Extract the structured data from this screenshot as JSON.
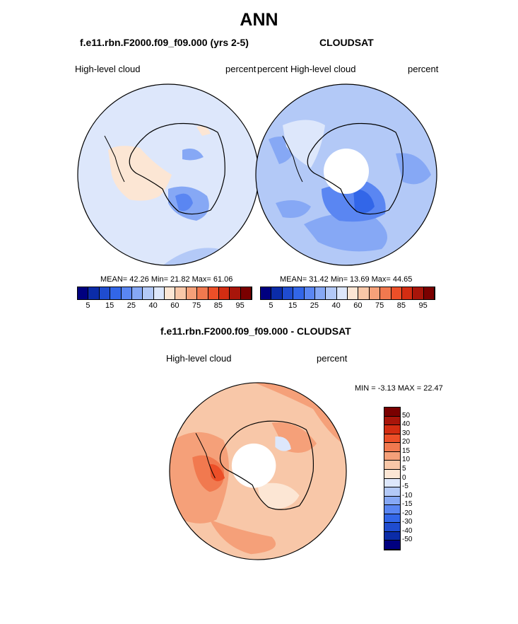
{
  "page": {
    "title": "ANN",
    "panel_left_title": "f.e11.rbn.F2000.f09_f09.000 (yrs 2-5)",
    "panel_right_title": "CLOUDSAT",
    "diff_title": "f.e11.rbn.F2000.f09_f09.000 - CLOUDSAT"
  },
  "colors": {
    "seq": [
      "#00007f",
      "#0b2ca8",
      "#1f4ccf",
      "#3266e8",
      "#5a86f2",
      "#86a8f5",
      "#b3c9f7",
      "#dde7fb",
      "#fce6d4",
      "#f8c7a8",
      "#f5a079",
      "#f1794f",
      "#ec4f28",
      "#d32d12",
      "#a8150a",
      "#7a0000"
    ],
    "div": [
      "#7a0000",
      "#a8150a",
      "#d32d12",
      "#ec4f28",
      "#f1794f",
      "#f5a079",
      "#f8c7a8",
      "#fce6d4",
      "#dde7fb",
      "#b3c9f7",
      "#86a8f5",
      "#5a86f2",
      "#3266e8",
      "#1f4ccf",
      "#0b2ca8",
      "#00007f"
    ]
  },
  "chart_data": [
    {
      "type": "heatmap",
      "projection": "south polar stereographic",
      "title": "f.e11.rbn.F2000.f09_f09.000 (yrs 2-5)",
      "left_label": "High-level cloud",
      "right_label": "percent",
      "stats": {
        "mean": "42.26",
        "min": "21.82",
        "max": "61.06"
      },
      "stats_text": "MEAN=  42.26  Min=  21.82  Max=  61.06",
      "colorbar_ticks": [
        "5",
        "15",
        "25",
        "40",
        "60",
        "75",
        "85",
        "95"
      ]
    },
    {
      "type": "heatmap",
      "projection": "south polar stereographic",
      "title": "CLOUDSAT",
      "left_label": "percent High-level cloud",
      "right_label": "percent",
      "stats": {
        "mean": "31.42",
        "min": "13.69",
        "max": "44.65"
      },
      "stats_text": "MEAN=  31.42  Min=  13.69  Max=  44.65",
      "colorbar_ticks": [
        "5",
        "15",
        "25",
        "40",
        "60",
        "75",
        "85",
        "95"
      ]
    },
    {
      "type": "heatmap",
      "projection": "south polar stereographic",
      "title": "f.e11.rbn.F2000.f09_f09.000 - CLOUDSAT",
      "left_label": "High-level cloud",
      "right_label": "percent",
      "stats": {
        "min": "-3.13",
        "max": "22.47"
      },
      "stats_text": "MIN =  -3.13 MAX =  22.47",
      "colorbar_ticks": [
        "50",
        "40",
        "30",
        "20",
        "15",
        "10",
        "5",
        "0",
        "-5",
        "-10",
        "-15",
        "-20",
        "-30",
        "-40",
        "-50"
      ]
    }
  ]
}
